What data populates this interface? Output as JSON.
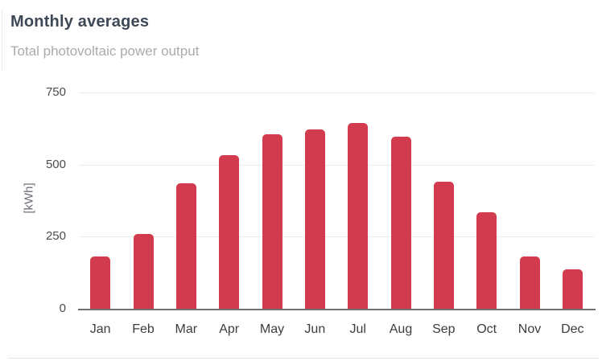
{
  "header": {
    "title": "Monthly averages",
    "subtitle": "Total photovoltaic power output"
  },
  "chart_data": {
    "type": "bar",
    "title": "Monthly averages",
    "subtitle": "Total photovoltaic power output",
    "categories": [
      "Jan",
      "Feb",
      "Mar",
      "Apr",
      "May",
      "Jun",
      "Jul",
      "Aug",
      "Sep",
      "Oct",
      "Nov",
      "Dec"
    ],
    "values": [
      180,
      260,
      434,
      533,
      606,
      622,
      645,
      597,
      440,
      335,
      182,
      136
    ],
    "xlabel": "",
    "ylabel": "[kWh]",
    "ylim": [
      0,
      750
    ],
    "yticks": [
      0,
      250,
      500,
      750
    ],
    "grid": "horizontal",
    "legend": "none",
    "bar_color": "#d13b4d"
  }
}
